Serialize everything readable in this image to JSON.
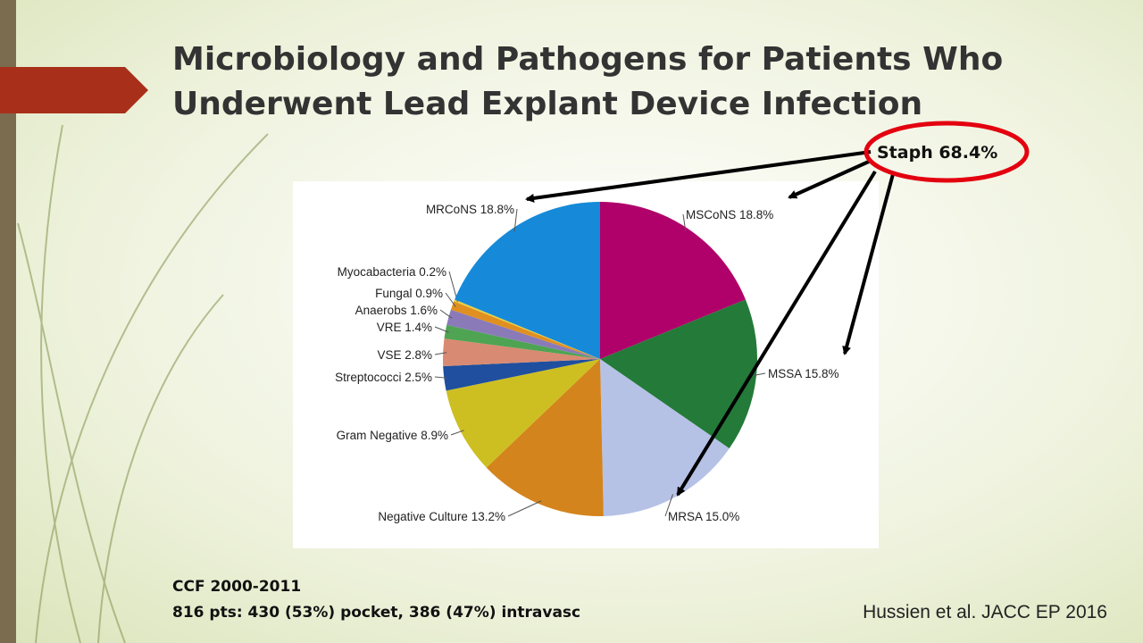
{
  "slide": {
    "title_lines": [
      "Microbiology and Pathogens for Patients Who",
      "Underwent Lead Explant Device Infection"
    ],
    "callout": "Staph 68.4%",
    "notes": [
      "CCF 2000-2011",
      "816 pts: 430 (53%) pocket, 386 (47%) intravasc"
    ],
    "citation": "Hussien et al. JACC EP 2016"
  },
  "chart_data": {
    "type": "pie",
    "categories": [
      "MSCoNS",
      "MSSA",
      "MRSA",
      "Negative Culture",
      "Gram Negative",
      "Streptococci",
      "VSE",
      "VRE",
      "Anaerobs",
      "Fungal",
      "Myocabacteria",
      "MRCoNS"
    ],
    "values": [
      18.8,
      15.8,
      15.0,
      13.2,
      8.9,
      2.5,
      2.8,
      1.4,
      1.6,
      0.9,
      0.2,
      18.8
    ],
    "value_labels": [
      "18.8%",
      "15.8%",
      "15.0%",
      "13.2%",
      "8.9%",
      "2.5%",
      "2.8%",
      "1.4%",
      "1.6%",
      "0.9%",
      "0.2%",
      "18.8%"
    ],
    "colors": [
      "#b0006a",
      "#247a38",
      "#b6c1e6",
      "#d4841c",
      "#cdbf22",
      "#1f4f9e",
      "#d98a72",
      "#4ea452",
      "#8a7bb8",
      "#e09020",
      "#e8d040",
      "#168ad8"
    ]
  }
}
